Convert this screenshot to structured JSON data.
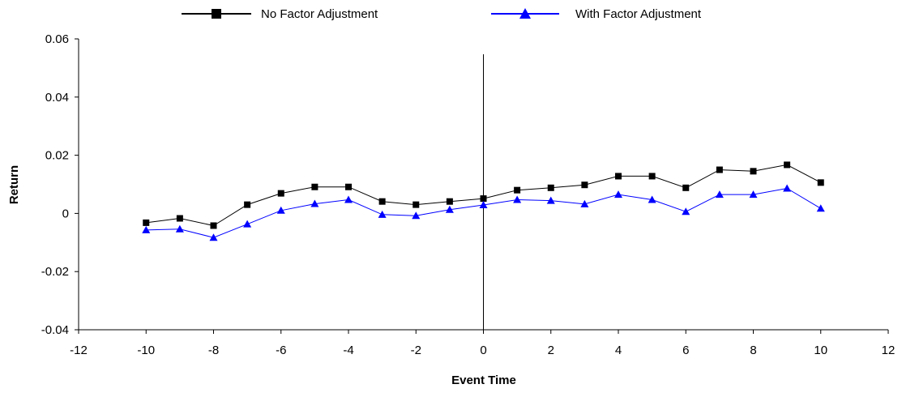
{
  "chart_data": {
    "type": "line",
    "title": "",
    "xlabel": "Event Time",
    "ylabel": "Return",
    "xlim": [
      -12,
      12
    ],
    "ylim": [
      -0.04,
      0.06
    ],
    "xticks": [
      -12,
      -10,
      -8,
      -6,
      -4,
      -2,
      0,
      2,
      4,
      6,
      8,
      10,
      12
    ],
    "yticks": [
      -0.04,
      -0.02,
      0,
      0.02,
      0.04,
      0.06
    ],
    "xtick_labels": [
      "-12",
      "-10",
      "-8",
      "-6",
      "-4",
      "-2",
      "0",
      "2",
      "4",
      "6",
      "8",
      "10",
      "12"
    ],
    "ytick_labels": [
      "-0.04",
      "-0.02",
      "0",
      "0.02",
      "0.04",
      "0.06"
    ],
    "grid": false,
    "legend_position": "top",
    "reference_line_x": 0,
    "x": [
      -10,
      -9,
      -8,
      -7,
      -6,
      -5,
      -4,
      -3,
      -2,
      -1,
      0,
      1,
      2,
      3,
      4,
      5,
      6,
      7,
      8,
      9,
      10
    ],
    "series": [
      {
        "name": "No Factor Adjustment",
        "color": "#000000",
        "marker": "square",
        "values": [
          -0.0032,
          -0.0017,
          -0.0042,
          0.003,
          0.0069,
          0.0091,
          0.0091,
          0.0041,
          0.003,
          0.0041,
          0.0051,
          0.008,
          0.0088,
          0.0098,
          0.0128,
          0.0128,
          0.0088,
          0.015,
          0.0145,
          0.0167,
          0.0106
        ]
      },
      {
        "name": "With Factor Adjustment",
        "color": "#0000ff",
        "marker": "triangle",
        "values": [
          -0.0057,
          -0.0054,
          -0.0083,
          -0.0037,
          0.001,
          0.0033,
          0.0047,
          -0.0004,
          -0.0008,
          0.0013,
          0.0029,
          0.0047,
          0.0044,
          0.0032,
          0.0065,
          0.0047,
          0.0006,
          0.0065,
          0.0065,
          0.0086,
          0.0017
        ]
      }
    ]
  }
}
